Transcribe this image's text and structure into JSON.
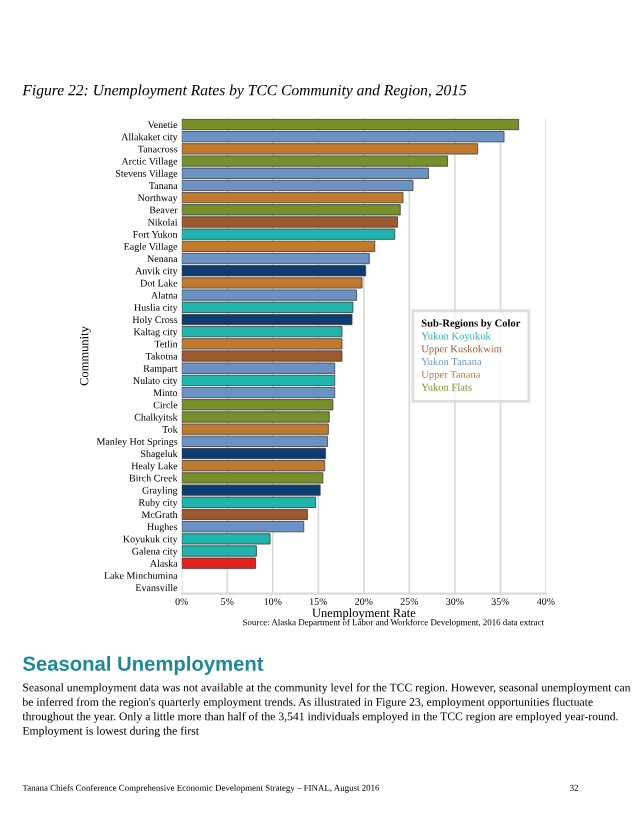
{
  "chart_data": {
    "type": "bar",
    "orientation": "horizontal",
    "title": "Figure 22: Unemployment Rates by TCC Community and Region, 2015",
    "xlabel": "Unemployment Rate",
    "ylabel": "Community",
    "legend_title": "Sub-Regions by Color",
    "legend": "right",
    "grid": "x",
    "categories": [
      "Venetie",
      "Allakaket city",
      "Tanacross",
      "Arctic Village",
      "Stevens Village",
      "Tanana",
      "Northway",
      "Beaver",
      "Nikolai",
      "Fort Yukon",
      "Eagle Village",
      "Nenana",
      "Anvik city",
      "Dot Lake",
      "Alatna",
      "Huslia city",
      "Holy Cross",
      "Kaltag city",
      "Tetlin",
      "Takotna",
      "Rampart",
      "Nulato city",
      "Minto",
      "Circle",
      "Chalkyitsk",
      "Tok",
      "Manley Hot Springs",
      "Shageluk",
      "Healy Lake",
      "Birch Creek",
      "Grayling",
      "Ruby city",
      "McGrath",
      "Hughes",
      "Koyukuk city",
      "Galena city",
      "Alaska",
      "Lake Minchumina",
      "Evansville"
    ],
    "series": [
      {
        "name": "Yukon Koyukuk",
        "color": "#1fb5ad",
        "values": [
          null,
          null,
          null,
          null,
          null,
          null,
          null,
          null,
          null,
          23.4,
          null,
          null,
          null,
          null,
          null,
          18.8,
          null,
          17.6,
          null,
          null,
          null,
          16.8,
          null,
          null,
          null,
          null,
          null,
          null,
          null,
          null,
          null,
          14.7,
          null,
          null,
          9.7,
          8.2,
          null,
          null,
          null
        ]
      },
      {
        "name": "Upper Kuskokwim",
        "color": "#9c5a2e",
        "values": [
          null,
          null,
          null,
          null,
          null,
          null,
          null,
          null,
          23.7,
          null,
          null,
          null,
          null,
          null,
          null,
          null,
          null,
          null,
          null,
          17.6,
          null,
          null,
          null,
          null,
          null,
          null,
          null,
          null,
          null,
          null,
          null,
          null,
          13.8,
          null,
          null,
          null,
          null,
          null,
          null
        ]
      },
      {
        "name": "Yukon Tanana",
        "color": "#6a93c4",
        "values": [
          null,
          35.4,
          null,
          null,
          27.1,
          25.4,
          null,
          null,
          null,
          null,
          null,
          20.6,
          null,
          null,
          19.2,
          null,
          null,
          null,
          null,
          null,
          16.8,
          null,
          16.8,
          null,
          null,
          null,
          16.0,
          null,
          null,
          null,
          null,
          null,
          null,
          13.4,
          null,
          null,
          null,
          null,
          null
        ]
      },
      {
        "name": "Upper Tanana",
        "color": "#c07a2e",
        "values": [
          null,
          null,
          32.5,
          null,
          null,
          null,
          24.3,
          null,
          null,
          null,
          21.2,
          null,
          null,
          19.8,
          null,
          null,
          null,
          null,
          17.6,
          null,
          null,
          null,
          null,
          null,
          null,
          16.1,
          null,
          null,
          15.7,
          null,
          null,
          null,
          null,
          null,
          null,
          null,
          null,
          null,
          null
        ]
      },
      {
        "name": "Yukon Flats",
        "color": "#77902a",
        "values": [
          37.0,
          null,
          null,
          29.2,
          null,
          null,
          null,
          24.0,
          null,
          null,
          null,
          null,
          null,
          null,
          null,
          null,
          null,
          null,
          null,
          null,
          null,
          null,
          null,
          16.6,
          16.2,
          null,
          null,
          null,
          null,
          15.5,
          null,
          null,
          null,
          null,
          null,
          null,
          null,
          null,
          null
        ]
      },
      {
        "color": "#0d3d70",
        "values": [
          null,
          null,
          null,
          null,
          null,
          null,
          null,
          null,
          null,
          null,
          null,
          null,
          20.2,
          null,
          null,
          null,
          18.7,
          null,
          null,
          null,
          null,
          null,
          null,
          null,
          null,
          null,
          null,
          15.8,
          null,
          null,
          15.2,
          null,
          null,
          null,
          null,
          null,
          null,
          null,
          null
        ]
      },
      {
        "color": "#e8201c",
        "values": [
          null,
          null,
          null,
          null,
          null,
          null,
          null,
          null,
          null,
          null,
          null,
          null,
          null,
          null,
          null,
          null,
          null,
          null,
          null,
          null,
          null,
          null,
          null,
          null,
          null,
          null,
          null,
          null,
          null,
          null,
          null,
          null,
          null,
          null,
          null,
          null,
          8.1,
          null,
          null
        ]
      }
    ],
    "xlim": [
      0,
      40
    ],
    "xticks": [
      {
        "value": 0,
        "label": "0%"
      },
      {
        "value": 5,
        "label": "5%"
      },
      {
        "value": 10,
        "label": "10%"
      },
      {
        "value": 15,
        "label": "15%"
      },
      {
        "value": 20,
        "label": "20%"
      },
      {
        "value": 25,
        "label": "25%"
      },
      {
        "value": 30,
        "label": "30%"
      },
      {
        "value": 35,
        "label": "35%"
      },
      {
        "value": 40,
        "label": "40%"
      }
    ],
    "annotations": [
      "Source: Alaska Department of Labor and Workforce Development, 2016 data extract",
      "Seasonal Unemployment",
      "Seasonal unemployment data was not available at the community level for the TCC region. However, seasonal unemployment can be inferred from the region's quarterly employment trends. As illustrated in Figure 23, employment opportunities fluctuate throughout the year. Only a little more than half of the 3,541 individuals employed in the TCC region are employed year-round. Employment is lowest during the first",
      "Tanana Chiefs Conference Comprehensive Economic Development Strategy – FINAL, August 2016",
      "32"
    ]
  }
}
